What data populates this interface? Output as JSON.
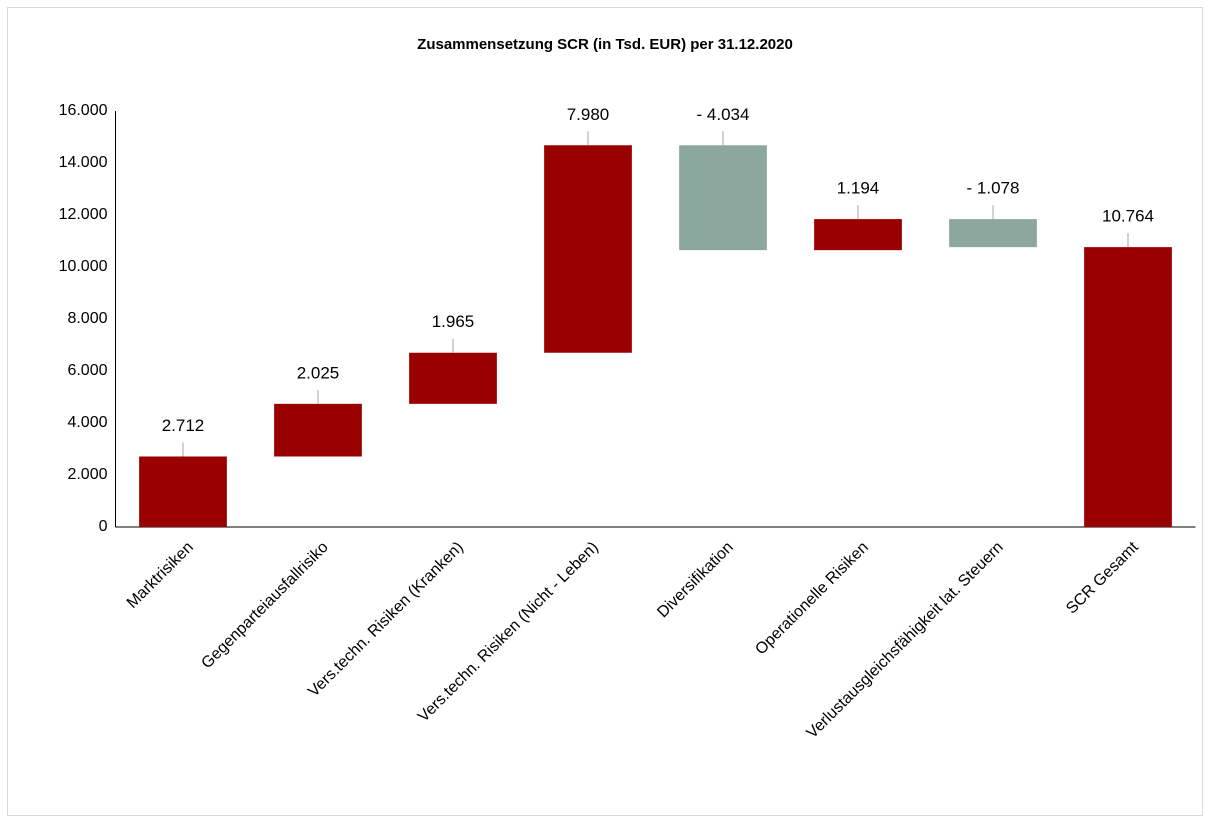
{
  "chart_data": {
    "type": "waterfall",
    "title": "Zusammensetzung SCR (in Tsd. EUR) per 31.12.2020",
    "categories": [
      "Marktrisiken",
      "Gegenparteiausfallrisiko",
      "Vers.techn. Risiken (Kranken)",
      "Vers.techn. Risiken (Nicht - Leben)",
      "Diversifikation",
      "Operationelle Risiken",
      "Verlustausgleichsfähigkeit lat. Steuern",
      "SCR Gesamt"
    ],
    "values": [
      2712,
      2025,
      1965,
      7980,
      -4034,
      1194,
      -1078,
      10764
    ],
    "value_labels": [
      "2.712",
      "2.025",
      "1.965",
      "7.980",
      "- 4.034",
      "1.194",
      "- 1.078",
      "10.764"
    ],
    "is_total": [
      false,
      false,
      false,
      false,
      false,
      false,
      false,
      true
    ],
    "colors": {
      "increase": "#990000",
      "decrease": "#8ca89e",
      "total": "#990000"
    },
    "ylim": [
      0,
      16000
    ],
    "yticks": [
      0,
      {
        "value": 2000,
        "label": "2.000"
      },
      {
        "value": 4000,
        "label": "4.000"
      },
      {
        "value": 6000,
        "label": "6.000"
      },
      {
        "value": 8000,
        "label": "8.000"
      },
      {
        "value": 10000,
        "label": "10.000"
      },
      {
        "value": 12000,
        "label": "12.000"
      },
      {
        "value": 14000,
        "label": "14.000"
      },
      {
        "value": 16000,
        "label": "16.000"
      }
    ],
    "grid": false
  }
}
